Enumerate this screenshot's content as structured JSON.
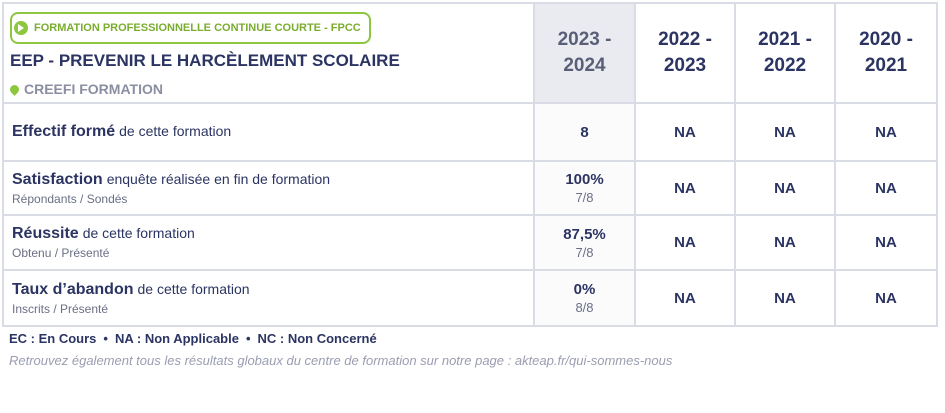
{
  "header": {
    "badge": "FORMATION PROFESSIONNELLE CONTINUE COURTE - FPCC",
    "title": "EEP - PREVENIR LE HARCÈLEMENT SCOLAIRE",
    "organization": "CREEFI FORMATION"
  },
  "years": [
    [
      "2023 -",
      "2024"
    ],
    [
      "2022 -",
      "2023"
    ],
    [
      "2021 -",
      "2022"
    ],
    [
      "2020 -",
      "2021"
    ]
  ],
  "rows": [
    {
      "label": "Effectif formé",
      "description": "de cette formation",
      "values": [
        "8",
        "NA",
        "NA",
        "NA"
      ]
    },
    {
      "label": "Satisfaction",
      "description": "enquête réalisée en fin de formation",
      "sub": "Répondants / Sondés",
      "values": [
        "100%",
        "NA",
        "NA",
        "NA"
      ],
      "ratio": "7/8"
    },
    {
      "label": "Réussite",
      "description": "de cette formation",
      "sub": "Obtenu / Présenté",
      "values": [
        "87,5%",
        "NA",
        "NA",
        "NA"
      ],
      "ratio": "7/8"
    },
    {
      "label": "Taux d’abandon",
      "description": "de cette formation",
      "sub": "Inscrits / Présenté",
      "values": [
        "0%",
        "NA",
        "NA",
        "NA"
      ],
      "ratio": "8/8"
    }
  ],
  "footer": {
    "legend": [
      "EC : En Cours",
      "NA : Non Applicable",
      "NC : Non Concerné"
    ],
    "note": "Retrouvez également tous les résultats globaux du centre de formation sur notre page : akteap.fr/qui-sommes-nous"
  }
}
